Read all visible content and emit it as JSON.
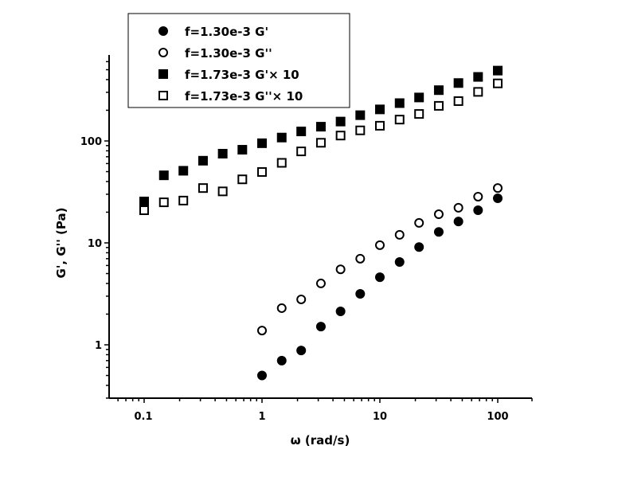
{
  "chart_data": {
    "type": "scatter",
    "title": "",
    "xlabel": "ω (rad/s)",
    "ylabel": "G', G'' (Pa)",
    "xscale": "log",
    "yscale": "log",
    "xlim": [
      0.05,
      230
    ],
    "ylim": [
      0.3,
      700
    ],
    "xticks": [
      0.1,
      1,
      10,
      100
    ],
    "xtick_labels": [
      "0.1",
      "1",
      "10",
      "100"
    ],
    "yticks": [
      1,
      10,
      100
    ],
    "ytick_labels": [
      "1",
      "10",
      "100"
    ],
    "grid": false,
    "legend_position": "upper-left (boxed)",
    "series": [
      {
        "name": "f=1.30e-3 G'",
        "marker": "filled-circle",
        "x": [
          1.0,
          1.47,
          2.15,
          3.16,
          4.64,
          6.81,
          10.0,
          14.7,
          21.5,
          31.6,
          46.4,
          68.1,
          100
        ],
        "y": [
          0.5,
          0.7,
          0.88,
          1.51,
          2.13,
          3.16,
          4.6,
          6.5,
          9.1,
          12.8,
          16.2,
          20.9,
          27.4
        ]
      },
      {
        "name": "f=1.30e-3 G''",
        "marker": "open-circle",
        "x": [
          1.0,
          1.47,
          2.15,
          3.16,
          4.64,
          6.81,
          10.0,
          14.7,
          21.5,
          31.6,
          46.4,
          68.1,
          100
        ],
        "y": [
          1.38,
          2.29,
          2.79,
          4.0,
          5.5,
          7.0,
          9.5,
          12.0,
          15.7,
          19.1,
          22.1,
          28.4,
          34.5
        ]
      },
      {
        "name": "f=1.73e-3 G'× 10",
        "marker": "filled-square",
        "x": [
          0.1,
          0.147,
          0.215,
          0.316,
          0.464,
          0.681,
          1.0,
          1.47,
          2.15,
          3.16,
          4.64,
          6.81,
          10.0,
          14.7,
          21.5,
          31.6,
          46.4,
          68.1,
          100
        ],
        "y": [
          25.5,
          46,
          51,
          64,
          75,
          82,
          95,
          108,
          124,
          138,
          155,
          179,
          204,
          235,
          267,
          315,
          370,
          425,
          490
        ]
      },
      {
        "name": "f=1.73e-3 G''× 10",
        "marker": "open-square",
        "x": [
          0.1,
          0.147,
          0.215,
          0.316,
          0.464,
          0.681,
          1.0,
          1.47,
          2.15,
          3.16,
          4.64,
          6.81,
          10.0,
          14.7,
          21.5,
          31.6,
          46.4,
          68.1,
          100
        ],
        "y": [
          20.9,
          25,
          26,
          34.5,
          32,
          42,
          49.6,
          61,
          79,
          96,
          113,
          127,
          141,
          162,
          184,
          221,
          246,
          303,
          367
        ]
      }
    ]
  },
  "legend": {
    "items": [
      {
        "label": "f=1.30e-3 G'",
        "marker": "filled-circle"
      },
      {
        "label": "f=1.30e-3 G''",
        "marker": "open-circle"
      },
      {
        "label": "f=1.73e-3 G'× 10",
        "marker": "filled-square"
      },
      {
        "label": "f=1.73e-3 G''× 10",
        "marker": "open-square"
      }
    ]
  },
  "axes": {
    "x_title": "ω (rad/s)",
    "y_title": "G', G'' (Pa)",
    "x_tick_labels": [
      "0.1",
      "1",
      "10",
      "100"
    ],
    "y_tick_labels": [
      "1",
      "10",
      "100"
    ]
  }
}
